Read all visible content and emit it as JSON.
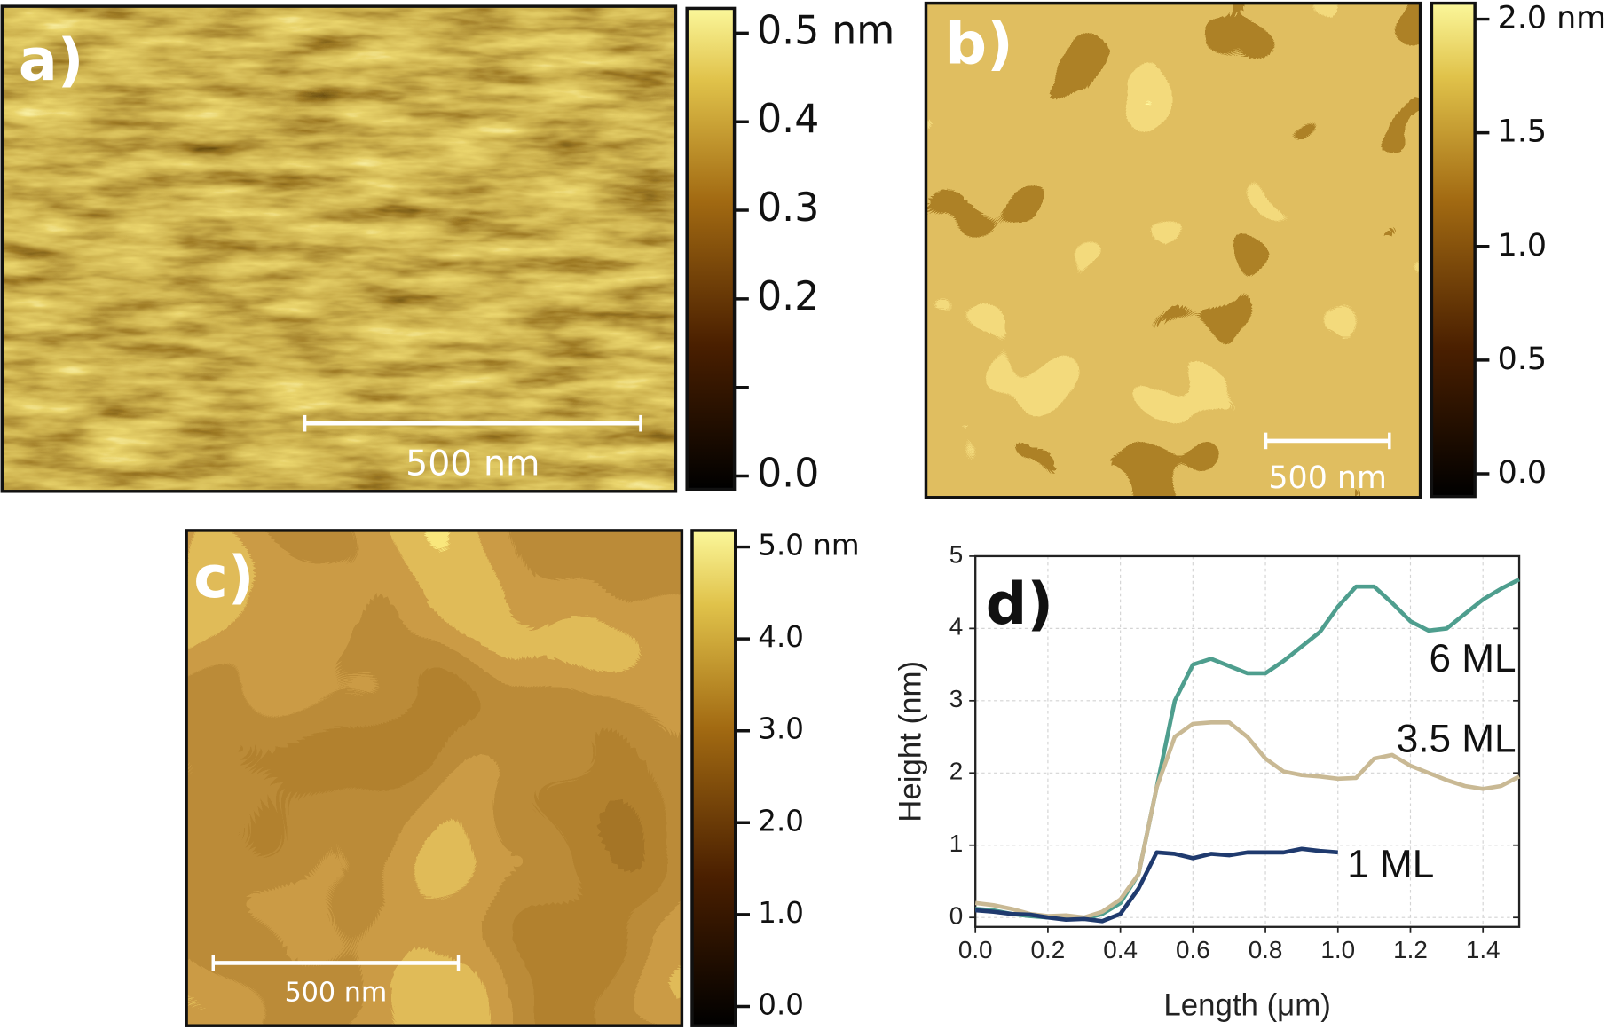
{
  "chart_data": [
    {
      "type": "image",
      "panel_label": "a)",
      "scale_bar": "500 nm",
      "zlim": [
        -0.015,
        0.528
      ],
      "zticks": [
        {
          "value": 0,
          "label": "0.0"
        },
        0.2,
        0.3,
        0.4,
        {
          "value": 0.5,
          "label": "0.5 nm"
        }
      ],
      "minor_zticks": [
        0.1
      ]
    },
    {
      "type": "image",
      "panel_label": "b)",
      "scale_bar": "500 nm",
      "zlim": [
        -0.1,
        2.07
      ],
      "zticks": [
        {
          "value": 0,
          "label": "0.0"
        },
        0.5,
        {
          "value": 1,
          "label": "1.0"
        },
        1.5,
        {
          "value": 2,
          "label": "2.0 nm"
        }
      ]
    },
    {
      "type": "image",
      "panel_label": "c)",
      "scale_bar": "500 nm",
      "zlim": [
        -0.21,
        5.18
      ],
      "zticks": [
        {
          "value": 0,
          "label": "0.0"
        },
        {
          "value": 1,
          "label": "1.0"
        },
        {
          "value": 2,
          "label": "2.0"
        },
        {
          "value": 3,
          "label": "3.0"
        },
        {
          "value": 4,
          "label": "4.0"
        },
        {
          "value": 5,
          "label": "5.0 nm"
        }
      ]
    },
    {
      "type": "line",
      "panel_label": "d)",
      "x_label": "Length (μm)",
      "y_label": "Height (nm)",
      "xlim": [
        0,
        1.5
      ],
      "ylim": [
        -0.13,
        5
      ],
      "xticks": [
        {
          "value": 0,
          "label": "0.0"
        },
        0.2,
        0.4,
        0.6,
        0.8,
        {
          "value": 1,
          "label": "1.0"
        },
        1.2,
        1.4
      ],
      "yticks": [
        0,
        1,
        2,
        3,
        4,
        5
      ],
      "grid": true,
      "x": [
        0,
        0.05,
        0.1,
        0.15,
        0.2,
        0.25,
        0.3,
        0.35,
        0.4,
        0.45,
        0.5,
        0.55,
        0.6,
        0.65,
        0.7,
        0.75,
        0.8,
        0.85,
        0.9,
        0.95,
        1.0,
        1.05,
        1.1,
        1.15,
        1.2,
        1.25,
        1.3,
        1.35,
        1.4,
        1.45,
        1.5
      ],
      "series": [
        {
          "name": "6 ML",
          "color": "#4e9e8e",
          "values": [
            0.12,
            0.1,
            0.05,
            0.02,
            0,
            0,
            -0.02,
            0.05,
            0.2,
            0.6,
            1.8,
            3.0,
            3.5,
            3.58,
            3.48,
            3.38,
            3.38,
            3.55,
            3.75,
            3.95,
            4.3,
            4.58,
            4.58,
            4.35,
            4.1,
            3.97,
            4.0,
            4.2,
            4.4,
            4.55,
            4.68
          ]
        },
        {
          "name": "3.5 ML",
          "color": "#c9b994",
          "values": [
            0.2,
            0.17,
            0.12,
            0.05,
            0.02,
            0.03,
            0,
            0.08,
            0.25,
            0.6,
            1.8,
            2.5,
            2.68,
            2.7,
            2.7,
            2.5,
            2.2,
            2.02,
            1.97,
            1.95,
            1.92,
            1.93,
            2.2,
            2.25,
            2.1,
            2.0,
            1.9,
            1.82,
            1.78,
            1.82,
            1.95
          ]
        },
        {
          "name": "1 ML",
          "color": "#1f3a6e",
          "values": [
            0.1,
            0.08,
            0.05,
            0.04,
            0,
            -0.03,
            -0.02,
            -0.05,
            0.05,
            0.4,
            0.9,
            0.88,
            0.82,
            0.88,
            0.86,
            0.9,
            0.9,
            0.9,
            0.95,
            0.92,
            0.9,
            null,
            null,
            null,
            null,
            null,
            null,
            null,
            null,
            null,
            null
          ]
        }
      ]
    }
  ]
}
